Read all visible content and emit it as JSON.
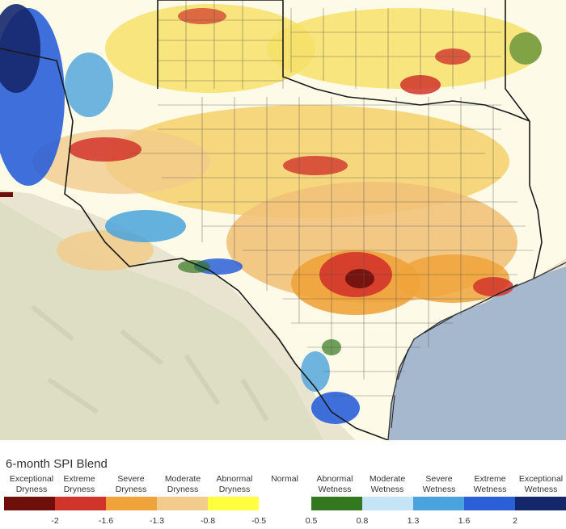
{
  "legend": {
    "title": "6-month SPI Blend",
    "categories": [
      {
        "line1": "Exceptional",
        "line2": "Dryness",
        "color": "#6e0f0c"
      },
      {
        "line1": "Extreme",
        "line2": "Dryness",
        "color": "#d1342a"
      },
      {
        "line1": "Severe",
        "line2": "Dryness",
        "color": "#f0a33a"
      },
      {
        "line1": "Moderate",
        "line2": "Dryness",
        "color": "#f2cc8c"
      },
      {
        "line1": "Abnormal",
        "line2": "Dryness",
        "color": "#ffff3f"
      },
      {
        "line1": "Normal",
        "line2": "",
        "color": "#ffffff"
      },
      {
        "line1": "Abnormal",
        "line2": "Wetness",
        "color": "#33771f"
      },
      {
        "line1": "Moderate",
        "line2": "Wetness",
        "color": "#c5e4f6"
      },
      {
        "line1": "Severe",
        "line2": "Wetness",
        "color": "#4aa3dc"
      },
      {
        "line1": "Extreme",
        "line2": "Wetness",
        "color": "#2a5fd8"
      },
      {
        "line1": "Exceptional",
        "line2": "Wetness",
        "color": "#15276b"
      }
    ],
    "ticks": [
      "-2",
      "-1.6",
      "-1.3",
      "-0.8",
      "-0.5",
      "0.5",
      "0.8",
      "1.3",
      "1.6",
      "2"
    ]
  },
  "colors": {
    "land_background": "#ece8d6",
    "gulf_water": "#a6b8cd",
    "county_lines": "#555555",
    "state_border": "#1a1a1a"
  }
}
